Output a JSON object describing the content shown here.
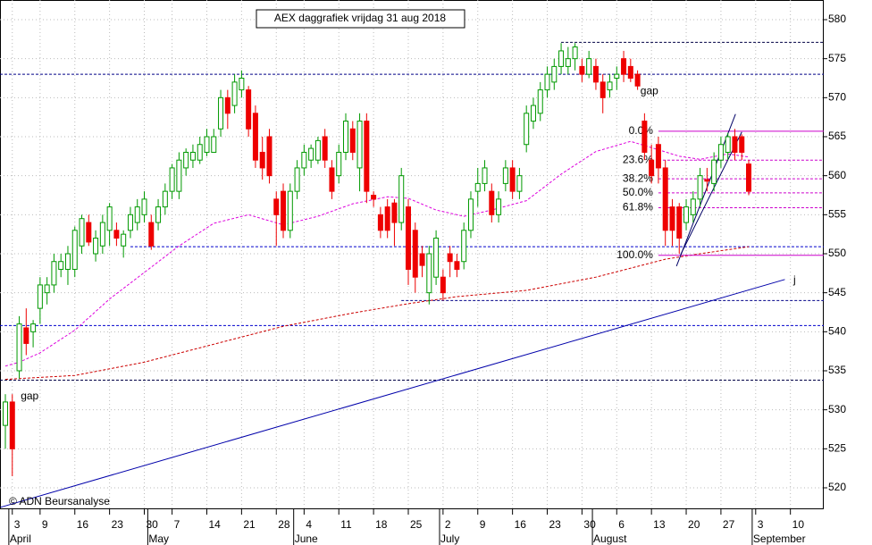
{
  "chart_data": {
    "type": "candlestick",
    "title": "AEX daggrafiek vrijdag 31 aug 2018",
    "credit": "© ADN Beursanalyse",
    "up_color": "#009900",
    "down_color": "#ee0000",
    "grid": true,
    "xlim": [
      -0.77,
      117.8
    ],
    "ylim": [
      517.25,
      582.52
    ],
    "yticks": [
      520,
      525,
      530,
      535,
      540,
      545,
      550,
      555,
      560,
      565,
      570,
      575,
      580
    ],
    "xticks": [
      {
        "value": 1,
        "label": "3"
      },
      {
        "value": 5,
        "label": "9"
      },
      {
        "value": 10,
        "label": "16"
      },
      {
        "value": 15,
        "label": "23"
      },
      {
        "value": 20,
        "label": "30"
      },
      {
        "value": 24,
        "label": "7"
      },
      {
        "value": 29,
        "label": "14"
      },
      {
        "value": 34,
        "label": "21"
      },
      {
        "value": 39,
        "label": "28"
      },
      {
        "value": 43,
        "label": "4"
      },
      {
        "value": 48,
        "label": "11"
      },
      {
        "value": 53,
        "label": "18"
      },
      {
        "value": 58,
        "label": "25"
      },
      {
        "value": 63,
        "label": "2"
      },
      {
        "value": 68,
        "label": "9"
      },
      {
        "value": 73,
        "label": "16"
      },
      {
        "value": 78,
        "label": "23"
      },
      {
        "value": 83,
        "label": "30"
      },
      {
        "value": 88,
        "label": "6"
      },
      {
        "value": 93,
        "label": "13"
      },
      {
        "value": 98,
        "label": "20"
      },
      {
        "value": 103,
        "label": "27"
      },
      {
        "value": 108,
        "label": "3"
      },
      {
        "value": 113,
        "label": "10"
      }
    ],
    "months": [
      {
        "value": 1,
        "label": "April"
      },
      {
        "value": 21,
        "label": "May"
      },
      {
        "value": 42,
        "label": "June"
      },
      {
        "value": 63,
        "label": "July"
      },
      {
        "value": 85,
        "label": "August"
      },
      {
        "value": 108,
        "label": "September"
      }
    ],
    "ohlc": [
      [
        528,
        532,
        525,
        531
      ],
      [
        531,
        532,
        521.5,
        525
      ],
      [
        535,
        542,
        534,
        541
      ],
      [
        540.5,
        543,
        537,
        538.5
      ],
      [
        540,
        541.5,
        538,
        541
      ],
      [
        543,
        547,
        541,
        546
      ],
      [
        545,
        547,
        543.5,
        546
      ],
      [
        546,
        550,
        545,
        549
      ],
      [
        548,
        550,
        547,
        549
      ],
      [
        548,
        551,
        546,
        550
      ],
      [
        548,
        553.5,
        547,
        553
      ],
      [
        551,
        555,
        550,
        554.5
      ],
      [
        554,
        555,
        551,
        551.5
      ],
      [
        550,
        553,
        549,
        552
      ],
      [
        551,
        555,
        550,
        554
      ],
      [
        553,
        556.5,
        551,
        556
      ],
      [
        553,
        554,
        551,
        552
      ],
      [
        551,
        553,
        549.5,
        552.5
      ],
      [
        553,
        556,
        552,
        555
      ],
      [
        554,
        557,
        553,
        556
      ],
      [
        555,
        558,
        554,
        557
      ],
      [
        554,
        555,
        550.5,
        551
      ],
      [
        554,
        557,
        553,
        556
      ],
      [
        556,
        559,
        555,
        558
      ],
      [
        558,
        561.5,
        557,
        561
      ],
      [
        558,
        563,
        557,
        562
      ],
      [
        561,
        563.5,
        560,
        563
      ],
      [
        562,
        564,
        561,
        563
      ],
      [
        562,
        565,
        561.5,
        564
      ],
      [
        563,
        566,
        562.5,
        565
      ],
      [
        563,
        566,
        563,
        565
      ],
      [
        566,
        571,
        565,
        570
      ],
      [
        570,
        571,
        566,
        568
      ],
      [
        569,
        573,
        568,
        572
      ],
      [
        571,
        573.5,
        570,
        572.5
      ],
      [
        571,
        571.5,
        565,
        566
      ],
      [
        568,
        569,
        561,
        562
      ],
      [
        563,
        565,
        559.5,
        561
      ],
      [
        565,
        566,
        559,
        560
      ],
      [
        557,
        558,
        551,
        555
      ],
      [
        558,
        559,
        552,
        553
      ],
      [
        553,
        559,
        552,
        558
      ],
      [
        558,
        562,
        557,
        561
      ],
      [
        561,
        564,
        560,
        563
      ],
      [
        562,
        564,
        561,
        563.5
      ],
      [
        562,
        565,
        561.5,
        564.5
      ],
      [
        565,
        566,
        561,
        562
      ],
      [
        561,
        562,
        557,
        558
      ],
      [
        560,
        564,
        559,
        563
      ],
      [
        563,
        568,
        562,
        567
      ],
      [
        566,
        567,
        562,
        563
      ],
      [
        561,
        568,
        558,
        567
      ],
      [
        567,
        568,
        556.5,
        558
      ],
      [
        557.5,
        558,
        556,
        557
      ],
      [
        555,
        556,
        552,
        553
      ],
      [
        556,
        557,
        552,
        553
      ],
      [
        556.5,
        557,
        551,
        554
      ],
      [
        554,
        561,
        553,
        560
      ],
      [
        556,
        557,
        546,
        548
      ],
      [
        553,
        554,
        545,
        547
      ],
      [
        550,
        551,
        547,
        548.5
      ],
      [
        545,
        551,
        543.5,
        550
      ],
      [
        547,
        553,
        546,
        552
      ],
      [
        547,
        548,
        544,
        545
      ],
      [
        550,
        551,
        547,
        549
      ],
      [
        549,
        550,
        547,
        548
      ],
      [
        549,
        554,
        548,
        553
      ],
      [
        553,
        558,
        552,
        557
      ],
      [
        558,
        561,
        556,
        559
      ],
      [
        559,
        562,
        558,
        561
      ],
      [
        558,
        559,
        554,
        555
      ],
      [
        555,
        558,
        554,
        557
      ],
      [
        559,
        562,
        558,
        561
      ],
      [
        561,
        562,
        557,
        558
      ],
      [
        558,
        561,
        557,
        560
      ],
      [
        564,
        569,
        563,
        568
      ],
      [
        567,
        570,
        566,
        569
      ],
      [
        568,
        572,
        567,
        571
      ],
      [
        571,
        574,
        570,
        573
      ],
      [
        572,
        575,
        571,
        574
      ],
      [
        574,
        577,
        573,
        576
      ],
      [
        574,
        576.5,
        573,
        575
      ],
      [
        575,
        577,
        573.5,
        576.5
      ],
      [
        574,
        575,
        572,
        573
      ],
      [
        573,
        576,
        572.5,
        575
      ],
      [
        574,
        575,
        571,
        572
      ],
      [
        572,
        573,
        568,
        570
      ],
      [
        571,
        573,
        570,
        572
      ],
      [
        572.5,
        574,
        571,
        573
      ],
      [
        575,
        576,
        572,
        573
      ],
      [
        574,
        575,
        572,
        572.5
      ],
      [
        573,
        573.5,
        571,
        571.5
      ],
      [
        567,
        568,
        562,
        563
      ],
      [
        562,
        564,
        559,
        560
      ],
      [
        564,
        565,
        559,
        561
      ],
      [
        561,
        562,
        551,
        553
      ],
      [
        556,
        557,
        551,
        553
      ],
      [
        556,
        556.5,
        550,
        552
      ],
      [
        554,
        557,
        553,
        556
      ],
      [
        555,
        558,
        554,
        557
      ],
      [
        557,
        561,
        556,
        560
      ],
      [
        559.5,
        561,
        558,
        559.3
      ],
      [
        559,
        563,
        558,
        562
      ],
      [
        562,
        565,
        561,
        564
      ],
      [
        563,
        565.5,
        562,
        565
      ],
      [
        565,
        566,
        562,
        563
      ],
      [
        565,
        565.3,
        562,
        563
      ],
      [
        561.5,
        562,
        557.5,
        558
      ]
    ],
    "averages": [
      {
        "color": "#dd00dd",
        "x": [
          0,
          2,
          5,
          10,
          15,
          20,
          25,
          30,
          35,
          40,
          45,
          50,
          55,
          58,
          62,
          66,
          70,
          75,
          80,
          85,
          90,
          93,
          97,
          100,
          104,
          107
        ],
        "values": [
          535.6,
          536.1,
          537.3,
          540.2,
          544.2,
          547.6,
          551.0,
          553.9,
          555.0,
          553.7,
          554.8,
          556.4,
          557.3,
          557.1,
          555.6,
          554.8,
          555.6,
          556.8,
          560.2,
          563.1,
          564.4,
          563.6,
          562.5,
          562.1,
          562.8,
          562.4
        ]
      },
      {
        "color": "#cc0000",
        "x": [
          0,
          10,
          20,
          30,
          40,
          50,
          58,
          65,
          75,
          85,
          95,
          100,
          107
        ],
        "values": [
          533.9,
          534.4,
          536.1,
          538.4,
          540.7,
          542.4,
          543.6,
          544.5,
          545.3,
          547.0,
          549.3,
          550.0,
          550.9
        ]
      }
    ],
    "hlines": [
      {
        "value": 577.1,
        "from": 80,
        "color": "#000044"
      },
      {
        "value": 573.0,
        "color": "#000088"
      },
      {
        "value": 550.9,
        "from": 18,
        "color": "#0000cc"
      },
      {
        "value": 544.0,
        "from": 57,
        "color": "#000088"
      },
      {
        "value": 540.8,
        "color": "#0000cc"
      },
      {
        "value": 533.8,
        "color": "#000044"
      }
    ],
    "trendlines": [
      {
        "color": "#0000aa",
        "x": [
          -0.7,
          112.2
        ],
        "values": [
          517.5,
          546.7
        ]
      },
      {
        "color": "#000066",
        "x": [
          96.6,
          105.1
        ],
        "values": [
          548.4,
          567.9
        ]
      },
      {
        "color": "#000066",
        "x": [
          97.2,
          106.0
        ],
        "values": [
          549.9,
          565.6
        ]
      }
    ],
    "fibonacci": {
      "from": 94,
      "color": "#cc00cc",
      "levels": [
        {
          "label": "0.0%",
          "value": 565.7
        },
        {
          "label": "23.6%",
          "value": 562.0
        },
        {
          "label": "38.2%",
          "value": 559.6
        },
        {
          "label": "50.0%",
          "value": 557.8
        },
        {
          "label": "61.8%",
          "value": 555.9
        },
        {
          "label": "100.0%",
          "value": 549.8
        }
      ]
    },
    "annotations": [
      {
        "text": "gap",
        "x": 3.5,
        "y": 531.7
      },
      {
        "text": "gap",
        "x": 92.7,
        "y": 570.8
      },
      {
        "text": "j",
        "x": 113.6,
        "y": 546.6
      }
    ]
  }
}
